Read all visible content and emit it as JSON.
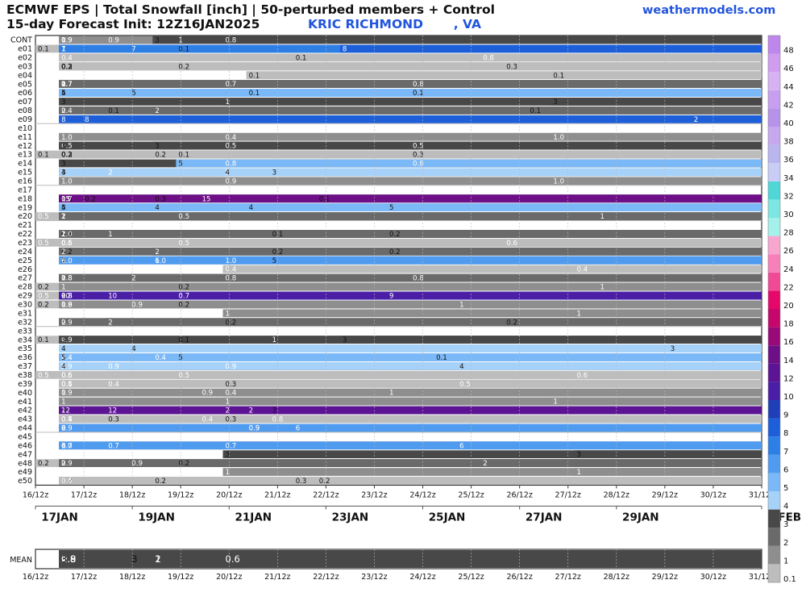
{
  "header": {
    "title": "ECMWF EPS | Total Snowfall [inch] | 50-perturbed members + Control",
    "init": "15-day Forecast Init: 12Z16JAN2025",
    "station": "KRIC RICHMOND       , VA",
    "site": "weathermodels.com"
  },
  "chart_data": {
    "type": "heatmap",
    "units": "inch",
    "columns_per_day": 2,
    "rows": [
      "CONT",
      "e01",
      "e02",
      "e03",
      "e04",
      "e05",
      "e06",
      "e07",
      "e08",
      "e09",
      "e10",
      "e11",
      "e12",
      "e13",
      "e14",
      "e15",
      "e16",
      "e17",
      "e18",
      "e19",
      "e20",
      "e21",
      "e22",
      "e23",
      "e24",
      "e25",
      "e26",
      "e27",
      "e28",
      "e29",
      "e30",
      "e31",
      "e32",
      "e33",
      "e34",
      "e35",
      "e36",
      "e37",
      "e38",
      "e39",
      "e40",
      "e41",
      "e42",
      "e43",
      "e44",
      "e45",
      "e46",
      "e47",
      "e48",
      "e49",
      "e50"
    ],
    "groups_after": [
      10,
      17,
      21,
      33,
      45
    ],
    "x_ticks": [
      "16/12z",
      "17/12z",
      "18/12z",
      "19/12z",
      "20/12z",
      "21/12z",
      "22/12z",
      "23/12z",
      "24/12z",
      "25/12z",
      "26/12z",
      "27/12z",
      "28/12z",
      "29/12z",
      "30/12z",
      "31/12z"
    ],
    "date_labels": [
      {
        "day": 1,
        "label": "17JAN"
      },
      {
        "day": 3,
        "label": "19JAN"
      },
      {
        "day": 5,
        "label": "21JAN"
      },
      {
        "day": 7,
        "label": "23JAN"
      },
      {
        "day": 9,
        "label": "25JAN"
      },
      {
        "day": 11,
        "label": "27JAN"
      },
      {
        "day": 13,
        "label": "29JAN"
      },
      {
        "day": 16,
        "label": "1FEB"
      }
    ],
    "members": {
      "CONT": [
        [
          8,
          "0.8"
        ],
        [
          1,
          "0.9"
        ],
        [
          1,
          "0.9"
        ],
        [
          3,
          "0.9"
        ],
        [
          1,
          "1"
        ],
        [
          1,
          "1"
        ],
        [
          1,
          "1"
        ],
        [
          1,
          "1"
        ],
        [
          6,
          "1"
        ],
        [
          5,
          "3"
        ]
      ],
      "e01": [
        [
          0,
          "0.1"
        ],
        [
          6,
          "0.1"
        ],
        [
          1,
          "1"
        ],
        [
          1,
          "1"
        ],
        [
          1,
          "1"
        ],
        [
          1,
          "1"
        ],
        [
          1,
          "7"
        ],
        [
          4,
          "7"
        ],
        [
          13,
          "8"
        ]
      ],
      "e02": [
        [
          11,
          "0.1"
        ],
        [
          1,
          "0.4"
        ],
        [
          19,
          "0.8"
        ]
      ],
      "e03": [
        [
          6,
          "0.2"
        ],
        [
          1,
          "0.2"
        ],
        [
          1,
          "0.2"
        ],
        [
          1,
          "0.2"
        ],
        [
          1,
          "0.2"
        ],
        [
          1,
          "0.3"
        ],
        [
          20,
          "0.3"
        ]
      ],
      "e04": [
        [
          22,
          "0.1"
        ],
        [
          9,
          "0.1"
        ]
      ],
      "e05": [
        [
          8,
          "0.7"
        ],
        [
          1,
          "0.7"
        ],
        [
          1,
          "0.7"
        ],
        [
          1,
          "0.7"
        ],
        [
          1,
          "0.7"
        ],
        [
          16,
          "0.8"
        ],
        [
          1,
          "1"
        ],
        [
          1,
          "1"
        ],
        [
          1,
          "2"
        ],
        [
          1,
          "2"
        ]
      ],
      "e06": [
        [
          9,
          "0.1"
        ],
        [
          16,
          "0.1"
        ],
        [
          1,
          "4"
        ],
        [
          1,
          "5"
        ],
        [
          4,
          "5"
        ]
      ],
      "e07": [
        [
          8,
          "1"
        ],
        [
          1,
          "3"
        ],
        [
          22,
          "3"
        ]
      ],
      "e08": [
        [
          21,
          "0.1"
        ],
        [
          3,
          "0.1"
        ],
        [
          1,
          "0.4"
        ],
        [
          1,
          "2"
        ],
        [
          5,
          "2"
        ]
      ],
      "e09": [
        [
          28,
          "2"
        ],
        [
          1,
          "8"
        ],
        [
          2,
          "8"
        ]
      ],
      "e10": [],
      "e11": [
        [
          8,
          "0.4"
        ],
        [
          1,
          "1.0"
        ],
        [
          22,
          "1.0"
        ]
      ],
      "e12": [
        [
          8,
          "0.5"
        ],
        [
          16,
          "0.5"
        ],
        [
          1,
          "0.5"
        ],
        [
          1,
          "3"
        ],
        [
          5,
          "3"
        ]
      ],
      "e13": [
        [
          0,
          "0.1"
        ],
        [
          6,
          "0.1"
        ],
        [
          1,
          "0.2"
        ],
        [
          1,
          "0.2"
        ],
        [
          1,
          "0.2"
        ],
        [
          5,
          "0.2"
        ],
        [
          1,
          "0.3"
        ],
        [
          16,
          "0.3"
        ]
      ],
      "e14": [
        [
          8,
          "0.8"
        ],
        [
          16,
          "0.8"
        ],
        [
          1,
          "3"
        ],
        [
          6,
          "5"
        ]
      ],
      "e15": [
        [
          8,
          "2"
        ],
        [
          1,
          "2"
        ],
        [
          3,
          "2"
        ],
        [
          1,
          "3"
        ],
        [
          10,
          "3"
        ],
        [
          1,
          "4"
        ],
        [
          8,
          "4"
        ]
      ],
      "e16": [
        [
          8,
          "0.9"
        ],
        [
          1,
          "1.0"
        ],
        [
          22,
          "1.0"
        ]
      ],
      "e17": [],
      "e18": [
        [
          12,
          "0.1"
        ],
        [
          1,
          "0.2"
        ],
        [
          2,
          "0.2"
        ],
        [
          1,
          "0.2"
        ],
        [
          1,
          "0.3"
        ],
        [
          5,
          "0.3"
        ],
        [
          1,
          "0.7"
        ],
        [
          1,
          "13"
        ],
        [
          1,
          "15"
        ],
        [
          7,
          "15"
        ]
      ],
      "e19": [
        [
          9,
          "4"
        ],
        [
          1,
          "4"
        ],
        [
          5,
          "4"
        ],
        [
          1,
          "5"
        ],
        [
          15,
          "5"
        ]
      ],
      "e20": [
        [
          0,
          "0.5"
        ],
        [
          6,
          "0.5"
        ],
        [
          1,
          "1"
        ],
        [
          24,
          "1"
        ],
        [
          1,
          "2"
        ],
        [
          1,
          "2"
        ]
      ],
      "e21": [],
      "e22": [
        [
          10,
          "0.1"
        ],
        [
          1,
          "0.1"
        ],
        [
          1,
          "0.2"
        ],
        [
          15,
          "0.2"
        ],
        [
          1,
          "1.0"
        ],
        [
          1,
          "1"
        ],
        [
          3,
          "1"
        ],
        [
          1,
          "2"
        ],
        [
          1,
          "2"
        ]
      ],
      "e23": [
        [
          0,
          "0.5"
        ],
        [
          6,
          "0.5"
        ],
        [
          1,
          "0.5"
        ],
        [
          1,
          "0.5"
        ],
        [
          1,
          "0.5"
        ],
        [
          1,
          "0.5"
        ],
        [
          1,
          "0.6"
        ],
        [
          20,
          "0.6"
        ]
      ],
      "e24": [
        [
          15,
          "0.2"
        ],
        [
          1,
          "0.2"
        ],
        [
          10,
          "0.2"
        ],
        [
          1,
          "2"
        ],
        [
          5,
          "2"
        ]
      ],
      "e25": [
        [
          8,
          "1.0"
        ],
        [
          1,
          "1.0"
        ],
        [
          5,
          "1.0"
        ],
        [
          1,
          "4"
        ],
        [
          1,
          "5"
        ],
        [
          10,
          "5"
        ],
        [
          1,
          "6"
        ],
        [
          5,
          "6"
        ]
      ],
      "e26": [
        [
          8,
          "0.4"
        ],
        [
          23,
          "0.4"
        ]
      ],
      "e27": [
        [
          8,
          "0.8"
        ],
        [
          16,
          "0.8"
        ],
        [
          1,
          "0.8"
        ],
        [
          1,
          "0.8"
        ],
        [
          1,
          "1"
        ],
        [
          1,
          "2"
        ],
        [
          4,
          "2"
        ]
      ],
      "e28": [
        [
          0,
          "0.2"
        ],
        [
          6,
          "0.2"
        ],
        [
          1,
          "1"
        ],
        [
          24,
          "1"
        ]
      ],
      "e29": [
        [
          0,
          "0.5"
        ],
        [
          6,
          "0.7"
        ],
        [
          1,
          "0.8"
        ],
        [
          1,
          "0.8"
        ],
        [
          1,
          "0.8"
        ],
        [
          1,
          "5"
        ],
        [
          1,
          "9"
        ],
        [
          15,
          "9"
        ],
        [
          1,
          "10"
        ],
        [
          3,
          "10"
        ]
      ],
      "e30": [
        [
          0,
          "0.2"
        ],
        [
          6,
          "0.2"
        ],
        [
          1,
          "0.8"
        ],
        [
          1,
          "0.9"
        ],
        [
          4,
          "0.9"
        ],
        [
          1,
          "1"
        ],
        [
          18,
          "1"
        ]
      ],
      "e31": [
        [
          8,
          "1"
        ],
        [
          23,
          "1"
        ]
      ],
      "e32": [
        [
          8,
          "0.2"
        ],
        [
          20,
          "0.2"
        ],
        [
          1,
          "0.9"
        ],
        [
          1,
          "2"
        ],
        [
          3,
          "2"
        ]
      ],
      "e33": [],
      "e34": [
        [
          0,
          "0.1"
        ],
        [
          6,
          "0.1"
        ],
        [
          1,
          "0.9"
        ],
        [
          1,
          "1"
        ],
        [
          10,
          "1"
        ],
        [
          1,
          "3"
        ],
        [
          13,
          "3"
        ]
      ],
      "e35": [
        [
          27,
          "3"
        ],
        [
          1,
          "4"
        ],
        [
          4,
          "4"
        ]
      ],
      "e36": [
        [
          17,
          "0.1"
        ],
        [
          1,
          "0.4"
        ],
        [
          1,
          "0.4"
        ],
        [
          5,
          "0.4"
        ],
        [
          1,
          "5"
        ],
        [
          6,
          "5"
        ]
      ],
      "e37": [
        [
          8,
          "0.9"
        ],
        [
          1,
          "0.9"
        ],
        [
          3,
          "0.9"
        ],
        [
          1,
          "2"
        ],
        [
          1,
          "4"
        ],
        [
          18,
          "4"
        ]
      ],
      "e38": [
        [
          0,
          "0.5"
        ],
        [
          6,
          "0.5"
        ],
        [
          1,
          "0.5"
        ],
        [
          1,
          "0.6"
        ],
        [
          23,
          "0.6"
        ]
      ],
      "e39": [
        [
          8,
          "0.3"
        ],
        [
          1,
          "0.4"
        ],
        [
          3,
          "0.4"
        ],
        [
          1,
          "0.5"
        ],
        [
          18,
          "0.5"
        ]
      ],
      "e40": [
        [
          8,
          "0.4"
        ],
        [
          1,
          "0.9"
        ],
        [
          7,
          "0.9"
        ],
        [
          1,
          "1"
        ],
        [
          15,
          "1"
        ]
      ],
      "e41": [
        [
          8,
          "1"
        ],
        [
          1,
          "1"
        ],
        [
          22,
          "1"
        ]
      ],
      "e42": [
        [
          8,
          "2"
        ],
        [
          1,
          "2"
        ],
        [
          9,
          "2"
        ],
        [
          1,
          "3"
        ],
        [
          10,
          "3"
        ],
        [
          1,
          "12"
        ],
        [
          3,
          "12"
        ]
      ],
      "e43": [
        [
          8,
          "0.3"
        ],
        [
          1,
          "0.3"
        ],
        [
          3,
          "0.3"
        ],
        [
          1,
          "0.4"
        ],
        [
          7,
          "0.4"
        ],
        [
          1,
          "0.7"
        ],
        [
          1,
          "0.8"
        ],
        [
          10,
          "0.8"
        ]
      ],
      "e44": [
        [
          9,
          "0.9"
        ],
        [
          1,
          "0.9"
        ],
        [
          9,
          "0.9"
        ],
        [
          1,
          "2"
        ],
        [
          1,
          "6"
        ],
        [
          11,
          "6"
        ]
      ],
      "e45": [],
      "e46": [
        [
          8,
          "0.7"
        ],
        [
          1,
          "0.7"
        ],
        [
          3,
          "0.7"
        ],
        [
          1,
          "1.0"
        ],
        [
          1,
          "6"
        ],
        [
          18,
          "6"
        ]
      ],
      "e47": [
        [
          8,
          "3"
        ],
        [
          23,
          "3"
        ]
      ],
      "e48": [
        [
          0,
          "0.2"
        ],
        [
          6,
          "0.2"
        ],
        [
          1,
          "0.9"
        ],
        [
          4,
          "0.9"
        ],
        [
          1,
          "2"
        ],
        [
          1,
          "2"
        ],
        [
          19,
          "2"
        ]
      ],
      "e49": [
        [
          8,
          "1"
        ],
        [
          23,
          "1"
        ]
      ],
      "e50": [
        [
          12,
          "0.2"
        ],
        [
          1,
          "0.2"
        ],
        [
          5,
          "0.2"
        ],
        [
          1,
          "0.3"
        ],
        [
          11,
          "0.3"
        ],
        [
          1,
          "0.4"
        ],
        [
          1,
          "0.5"
        ]
      ]
    },
    "mean": {
      "label": "MEAN",
      "values": [
        [
          8,
          "0.6"
        ],
        [
          1,
          "0.8"
        ],
        [
          1,
          "0.8"
        ],
        [
          1,
          "0.8"
        ],
        [
          1,
          "0.9"
        ],
        [
          1,
          "1"
        ],
        [
          5,
          "1"
        ],
        [
          1,
          "2"
        ],
        [
          5,
          "2"
        ],
        [
          1,
          "2"
        ],
        [
          1,
          "2"
        ],
        [
          1,
          "2"
        ],
        [
          1,
          "2"
        ],
        [
          1,
          "2"
        ],
        [
          1,
          "3"
        ],
        [
          4,
          "3"
        ]
      ]
    },
    "colorbar": {
      "labels": [
        "0.1",
        "1",
        "2",
        "3",
        "4",
        "5",
        "6",
        "7",
        "8",
        "9",
        "10",
        "12",
        "14",
        "16",
        "18",
        "20",
        "22",
        "24",
        "26",
        "28",
        "30",
        "32",
        "34",
        "36",
        "38",
        "40",
        "42",
        "44",
        "46",
        "48"
      ],
      "colors": [
        "#bdbdbd",
        "#8e8e8e",
        "#6a6a6a",
        "#484848",
        "#a6d2fa",
        "#7ab8f7",
        "#4f9bf0",
        "#2d7fe6",
        "#1c5fd8",
        "#1f3fb8",
        "#4a1fa6",
        "#5c1494",
        "#6d0f86",
        "#9a097a",
        "#c5076c",
        "#e5086a",
        "#f04a96",
        "#f77fba",
        "#f9a6cf",
        "#a4f0ea",
        "#7de6e2",
        "#4fd6d6",
        "#c8cdf5",
        "#b8b5ef",
        "#c6a8ee",
        "#b692ea",
        "#c89ef0",
        "#d6b2f4",
        "#cf9cf0",
        "#bf86ec"
      ]
    }
  }
}
